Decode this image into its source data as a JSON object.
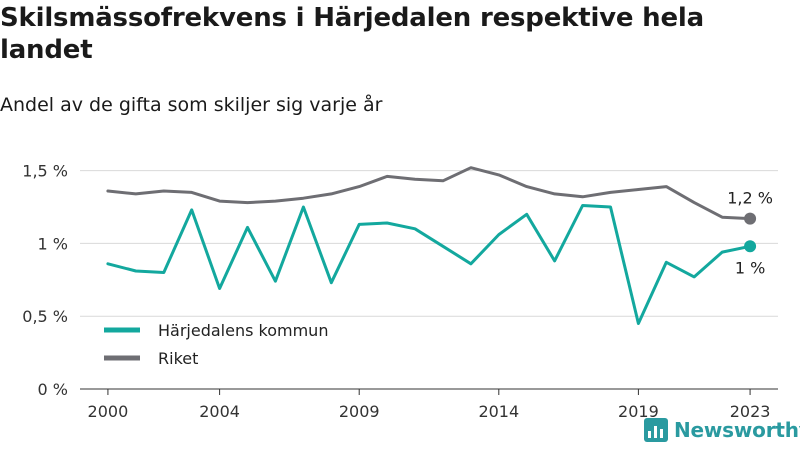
{
  "title": "Skilsmässofrekvens i Härjedalen respektive hela landet",
  "subtitle": "Andel av de gifta som skiljer sig varje år",
  "brand": {
    "name": "Newsworthy",
    "icon": "bar-chart-logo-icon"
  },
  "colors": {
    "harjedalen": "#13a89e",
    "riket": "#6e6e73",
    "grid": "#d9d9d9",
    "axis": "#333333"
  },
  "chart_data": {
    "type": "line",
    "x": [
      2000,
      2001,
      2002,
      2003,
      2004,
      2005,
      2006,
      2007,
      2008,
      2009,
      2010,
      2011,
      2012,
      2013,
      2014,
      2015,
      2016,
      2017,
      2018,
      2019,
      2020,
      2021,
      2022,
      2023
    ],
    "series": [
      {
        "name": "Härjedalens kommun",
        "color": "#13a89e",
        "values": [
          0.86,
          0.81,
          0.8,
          1.23,
          0.69,
          1.11,
          0.74,
          1.25,
          0.73,
          1.13,
          1.14,
          1.1,
          0.98,
          0.86,
          1.06,
          1.2,
          0.88,
          1.26,
          1.25,
          0.45,
          0.87,
          0.77,
          0.94,
          0.98
        ],
        "end_label": "1 %"
      },
      {
        "name": "Riket",
        "color": "#6e6e73",
        "values": [
          1.36,
          1.34,
          1.36,
          1.35,
          1.29,
          1.28,
          1.29,
          1.31,
          1.34,
          1.39,
          1.46,
          1.44,
          1.43,
          1.52,
          1.47,
          1.39,
          1.34,
          1.32,
          1.35,
          1.37,
          1.39,
          1.28,
          1.18,
          1.17
        ],
        "end_label": "1,2 %"
      }
    ],
    "xticks": [
      2000,
      2004,
      2009,
      2014,
      2019,
      2023
    ],
    "xtick_labels": [
      "2000",
      "2004",
      "2009",
      "2014",
      "2019",
      "2023"
    ],
    "yticks": [
      0,
      0.5,
      1,
      1.5
    ],
    "ytick_labels": [
      "0 %",
      "0,5 %",
      "1 %",
      "1,5 %"
    ],
    "ylim": [
      0,
      1.6
    ],
    "xlim": [
      1999,
      2024
    ],
    "grid": true,
    "legend_position": "bottom-left"
  }
}
